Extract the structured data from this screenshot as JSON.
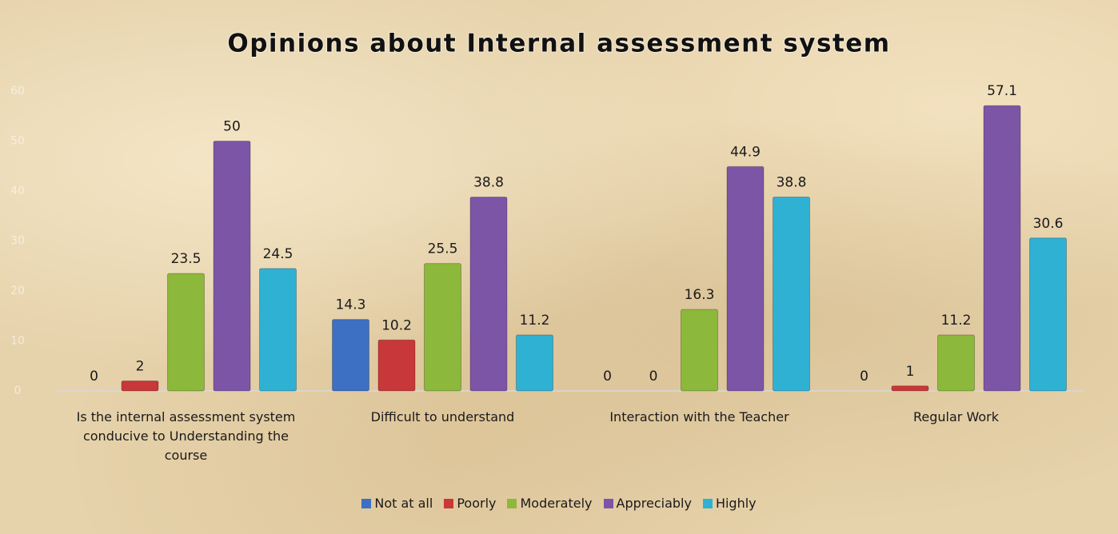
{
  "chart_data": {
    "type": "bar",
    "title": "Opinions about Internal assessment system",
    "categories": [
      "Is the internal assessment system conducive to Understanding the course",
      "Difficult to understand",
      "Interaction with the Teacher",
      "Regular Work"
    ],
    "series": [
      {
        "name": "Not at all",
        "color": "#3d6fc2",
        "values": [
          0,
          14.3,
          0,
          0
        ]
      },
      {
        "name": "Poorly",
        "color": "#c8373a",
        "values": [
          2,
          10.2,
          0,
          1
        ]
      },
      {
        "name": "Moderately",
        "color": "#8cb83b",
        "values": [
          23.5,
          25.5,
          16.3,
          11.2
        ]
      },
      {
        "name": "Appreciably",
        "color": "#7d55a7",
        "values": [
          50,
          38.8,
          44.9,
          57.1
        ]
      },
      {
        "name": "Highly",
        "color": "#2fb1d4",
        "values": [
          24.5,
          11.2,
          38.8,
          30.6
        ]
      }
    ],
    "ylim": [
      0,
      60
    ],
    "yticks": [
      0,
      10,
      20,
      30,
      40,
      50,
      60
    ],
    "legend": "bottom"
  }
}
